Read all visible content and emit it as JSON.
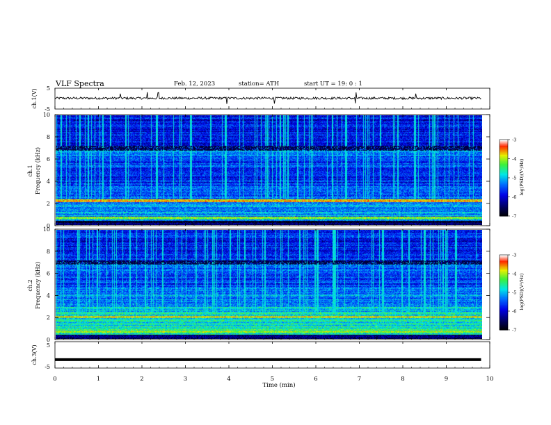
{
  "header": {
    "title": "VLF  Spectra",
    "date": "Feb. 12, 2023",
    "station": "station= ATH",
    "start_ut": "start  UT  =    19: 0   : 1"
  },
  "panels": {
    "ch1_wave": {
      "ylabel": "ch.1(V)",
      "ytick_top": "5",
      "ytick_bottom": "-5"
    },
    "ch1_spec": {
      "ylabel_channel": "ch.1",
      "ylabel": "Frequency  (kHz)"
    },
    "ch2_spec": {
      "ylabel_channel": "ch.2",
      "ylabel": "Frequency  (kHz)"
    },
    "ch3_wave": {
      "ylabel": "ch.3(V)",
      "ytick_top": "5",
      "ytick_bottom": "-5"
    }
  },
  "colorbar": {
    "label": "log(PSD)(V²/Hz)",
    "ticks": [
      "-3",
      "-4",
      "-5",
      "-6",
      "-7"
    ],
    "colors": [
      "#ffffff",
      "#ff0000",
      "#ffff00",
      "#00ff00",
      "#00ffff",
      "#0000ff",
      "#000080",
      "#000000"
    ]
  },
  "chart_data": [
    {
      "type": "line",
      "name": "ch.1 waveform",
      "ylabel": "ch.1(V)",
      "xlim": [
        0,
        10
      ],
      "ylim": [
        -5,
        5
      ],
      "data_extent_min": [
        0,
        9.8
      ],
      "baseline_v": 0.2,
      "spikes_min": [
        1.5,
        2.12,
        2.38,
        3.95,
        5.05,
        6.92,
        8.3
      ]
    },
    {
      "type": "heatmap",
      "name": "ch.1 spectrogram",
      "ylabel": "Frequency  (kHz)",
      "xlabel": "Time  (min)",
      "xlim": [
        0,
        10
      ],
      "ylim": [
        0,
        10
      ],
      "yticks": [
        "0",
        "2",
        "4",
        "6",
        "8",
        "10"
      ],
      "zlim": [
        -7,
        -3
      ],
      "strong_band_khz": [
        2.1,
        2.3
      ],
      "burst_times_min": [
        0.55,
        0.9,
        1.25,
        1.6,
        1.95,
        2.3,
        2.85,
        3.1,
        3.55,
        3.9,
        4.3,
        4.85,
        5.15,
        5.55,
        5.9,
        6.35,
        6.9,
        7.45,
        7.85,
        8.25,
        8.7,
        9.15,
        9.6
      ]
    },
    {
      "type": "heatmap",
      "name": "ch.2 spectrogram",
      "ylabel": "Frequency  (kHz)",
      "xlabel": "Time  (min)",
      "xlim": [
        0,
        10
      ],
      "ylim": [
        0,
        10
      ],
      "yticks": [
        "0",
        "2",
        "4",
        "6",
        "8",
        "10"
      ],
      "zlim": [
        -7,
        -3
      ],
      "strong_band_khz": [
        1.9,
        2.1
      ],
      "burst_times_min": [
        0.5,
        0.95,
        1.3,
        1.7,
        2.05,
        2.45,
        2.9,
        3.2,
        3.6,
        4.0,
        4.35,
        4.8,
        5.2,
        5.6,
        6.0,
        6.4,
        6.95,
        7.5,
        7.95,
        8.4,
        8.8,
        9.2,
        9.65
      ]
    },
    {
      "type": "line",
      "name": "ch.3 waveform",
      "ylabel": "ch.3(V)",
      "xlim": [
        0,
        10
      ],
      "ylim": [
        -5,
        5
      ],
      "data_extent_min": [
        0,
        9.8
      ],
      "constant_v": -1.8
    }
  ],
  "xaxis": {
    "label": "Time  (min)",
    "ticks": [
      "0",
      "1",
      "2",
      "3",
      "4",
      "5",
      "6",
      "7",
      "8",
      "9",
      "10"
    ]
  }
}
